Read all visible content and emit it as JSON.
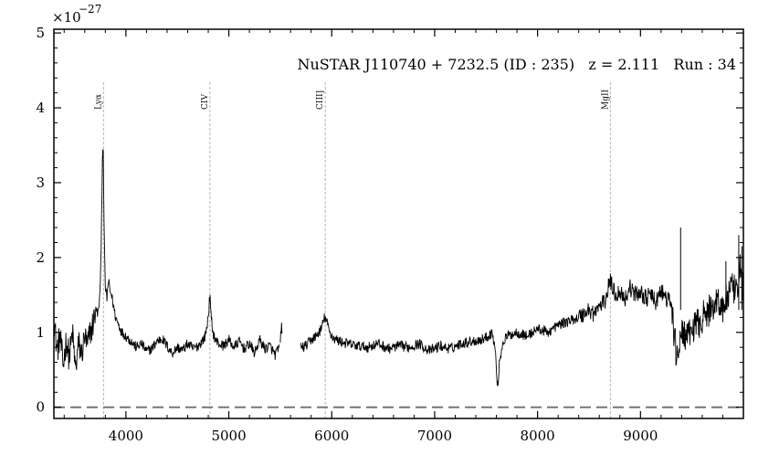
{
  "chart_data": {
    "type": "line",
    "title": "NuSTAR J110740 + 7232.5 (ID : 235)   z = 2.111   Run : 34",
    "xlabel": "",
    "ylabel": "",
    "y_scale_label": "×10",
    "y_scale_exponent": "−27",
    "xlim": [
      3300,
      10000
    ],
    "ylim": [
      -0.15,
      5.05
    ],
    "x_ticks": [
      4000,
      5000,
      6000,
      7000,
      8000,
      9000
    ],
    "x_tick_labels": [
      "4000",
      "5000",
      "6000",
      "7000",
      "8000",
      "9000"
    ],
    "y_ticks": [
      0,
      1,
      2,
      3,
      4,
      5
    ],
    "y_tick_labels": [
      "0",
      "1",
      "2",
      "3",
      "4",
      "5"
    ],
    "grid": false,
    "zero_line": 0,
    "emission_lines": [
      {
        "label": "Lyα",
        "x": 3782
      },
      {
        "label": "CIV",
        "x": 4816
      },
      {
        "label": "CIII]",
        "x": 5937
      },
      {
        "label": "MgII",
        "x": 8708
      }
    ],
    "series": [
      {
        "color": "#000000",
        "segments": [
          {
            "x": [
              3300,
              3330,
              3360,
              3390,
              3420,
              3450,
              3480,
              3510,
              3540,
              3570,
              3600,
              3625,
              3650,
              3670,
              3690,
              3710,
              3730,
              3745,
              3760,
              3770,
              3778,
              3783,
              3790,
              3800,
              3815,
              3830,
              3845,
              3860,
              3880,
              3900,
              3930,
              3960,
              4000,
              4050,
              4100,
              4150,
              4200,
              4250,
              4300,
              4350,
              4400,
              4450,
              4500,
              4550,
              4600,
              4650,
              4700,
              4740,
              4770,
              4790,
              4805,
              4816,
              4828,
              4845,
              4870,
              4900,
              4950,
              5000,
              5050,
              5100,
              5150,
              5200,
              5250,
              5300,
              5350,
              5400,
              5450,
              5490
            ],
            "y": [
              1.2,
              0.75,
              0.95,
              0.55,
              0.9,
              0.65,
              1.0,
              0.5,
              0.85,
              0.7,
              0.95,
              0.8,
              1.0,
              1.05,
              1.2,
              1.3,
              1.25,
              1.45,
              2.1,
              3.2,
              3.65,
              3.0,
              2.2,
              1.6,
              1.45,
              1.7,
              1.55,
              1.5,
              1.35,
              1.2,
              1.1,
              1.0,
              0.95,
              0.88,
              0.8,
              0.85,
              0.75,
              0.78,
              0.88,
              0.92,
              0.82,
              0.72,
              0.8,
              0.76,
              0.85,
              0.78,
              0.82,
              0.88,
              0.95,
              1.1,
              1.3,
              1.5,
              1.2,
              1.0,
              0.9,
              0.85,
              0.82,
              0.9,
              0.8,
              0.88,
              0.78,
              0.85,
              0.72,
              0.9,
              0.78,
              0.82,
              0.7,
              0.8
            ]
          },
          {
            "x": [
              5500,
              5510,
              5520
            ],
            "y": [
              0.85,
              1.1,
              1.0
            ]
          },
          {
            "x": [
              5700,
              5750,
              5800,
              5850,
              5900,
              5930,
              5950,
              5980,
              6020,
              6080,
              6150,
              6250,
              6350,
              6450,
              6550,
              6650,
              6750,
              6850,
              6950,
              7050,
              7150,
              7250,
              7350,
              7450,
              7520,
              7560,
              7590,
              7610,
              7630,
              7660,
              7700,
              7800,
              7900,
              8000,
              8100,
              8200,
              8300,
              8400,
              8500,
              8550,
              8600,
              8650,
              8680,
              8700,
              8730,
              8760,
              8800,
              8850,
              8900,
              8950,
              9000,
              9050,
              9100,
              9150,
              9200,
              9250,
              9300,
              9330,
              9350,
              9380,
              9400,
              9430,
              9460,
              9500,
              9550,
              9600,
              9650,
              9700,
              9750,
              9800,
              9850,
              9900,
              9940,
              9970,
              10000
            ],
            "y": [
              0.8,
              0.82,
              0.9,
              0.95,
              1.05,
              1.2,
              1.15,
              1.0,
              0.92,
              0.88,
              0.85,
              0.82,
              0.8,
              0.85,
              0.78,
              0.82,
              0.8,
              0.85,
              0.75,
              0.82,
              0.78,
              0.85,
              0.88,
              0.9,
              0.95,
              1.0,
              0.75,
              0.25,
              0.6,
              0.85,
              0.95,
              1.0,
              0.95,
              1.05,
              1.0,
              1.1,
              1.15,
              1.2,
              1.3,
              1.25,
              1.35,
              1.4,
              1.55,
              1.7,
              1.6,
              1.5,
              1.55,
              1.45,
              1.6,
              1.5,
              1.55,
              1.45,
              1.5,
              1.4,
              1.55,
              1.45,
              1.4,
              0.9,
              0.7,
              0.85,
              0.95,
              1.0,
              0.9,
              1.05,
              1.1,
              1.2,
              1.25,
              1.35,
              1.45,
              1.3,
              1.5,
              1.6,
              1.45,
              1.9,
              1.55
            ]
          }
        ],
        "spikes": [
          {
            "x": 9390,
            "y": 2.4
          },
          {
            "x": 9830,
            "y": 1.95
          },
          {
            "x": 9955,
            "y": 2.3
          },
          {
            "x": 9985,
            "y": 2.15
          }
        ]
      }
    ]
  }
}
